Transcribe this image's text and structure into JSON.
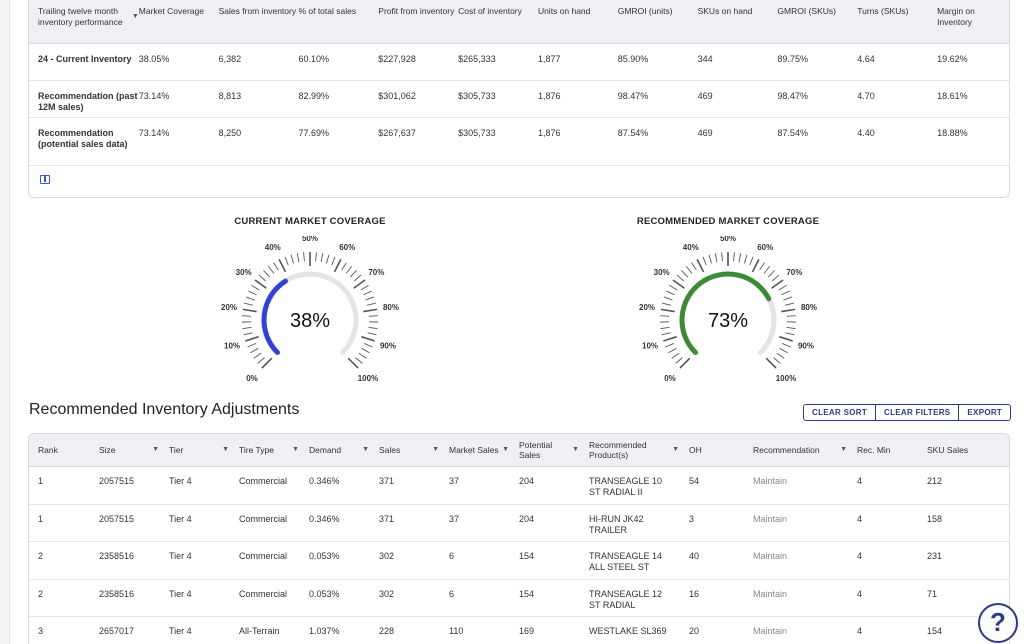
{
  "performance": {
    "headers": [
      "Trailing twelve month inventory performance",
      "Market Coverage",
      "Sales from inventory",
      "% of total sales",
      "Profit from inventory",
      "Cost of inventory",
      "Units on hand",
      "GMROI (units)",
      "SKUs on hand",
      "GMROI (SKUs)",
      "Turns (SKUs)",
      "Margin on Inventory"
    ],
    "rows": [
      [
        "24 - Current Inventory",
        "38.05%",
        "6,382",
        "60.10%",
        "$227,928",
        "$265,333",
        "1,877",
        "85.90%",
        "344",
        "89.75%",
        "4.64",
        "19.62%"
      ],
      [
        "Recommendation (past 12M sales)",
        "73.14%",
        "8,813",
        "82.99%",
        "$301,062",
        "$305,733",
        "1,876",
        "98.47%",
        "469",
        "98.47%",
        "4.70",
        "18.61%"
      ],
      [
        "Recommendation (potential sales data)",
        "73.14%",
        "8,250",
        "77.69%",
        "$267,637",
        "$305,733",
        "1,876",
        "87.54%",
        "469",
        "87.54%",
        "4.40",
        "18.88%"
      ]
    ]
  },
  "gauges": [
    {
      "title": "CURRENT MARKET COVERAGE",
      "value": 38.05,
      "display": "38%",
      "color": "#2f3fe0",
      "ticks": [
        "0%",
        "10%",
        "20%",
        "30%",
        "40%",
        "50%",
        "60%",
        "70%",
        "80%",
        "90%",
        "100%"
      ]
    },
    {
      "title": "RECOMMENDED MARKET COVERAGE",
      "value": 73.14,
      "display": "73%",
      "color": "#3d8b37",
      "ticks": [
        "0%",
        "10%",
        "20%",
        "30%",
        "40%",
        "50%",
        "60%",
        "70%",
        "80%",
        "90%",
        "100%"
      ]
    }
  ],
  "recommended": {
    "title": "Recommended Inventory Adjustments",
    "buttons": {
      "clear_sort": "CLEAR SORT",
      "clear_filters": "CLEAR FILTERS",
      "export": "EXPORT"
    },
    "headers": [
      "Rank",
      "Size",
      "Tier",
      "Tire Type",
      "Demand",
      "Sales",
      "Market Sales",
      "Potential Sales",
      "Recommended Product(s)",
      "OH",
      "Recommendation",
      "Rec. Min",
      "SKU Sales"
    ],
    "rows": [
      [
        "1",
        "2057515",
        "Tier 4",
        "Commercial",
        "0.346%",
        "371",
        "37",
        "204",
        "TRANSEAGLE 10 ST RADIAL II",
        "54",
        "Maintain",
        "4",
        "212"
      ],
      [
        "1",
        "2057515",
        "Tier 4",
        "Commercial",
        "0.346%",
        "371",
        "37",
        "204",
        "HI-RUN JK42 TRAILER",
        "3",
        "Maintain",
        "4",
        "158"
      ],
      [
        "2",
        "2358516",
        "Tier 4",
        "Commercial",
        "0.053%",
        "302",
        "6",
        "154",
        "TRANSEAGLE 14 ALL STEEL ST",
        "40",
        "Maintain",
        "4",
        "231"
      ],
      [
        "2",
        "2358516",
        "Tier 4",
        "Commercial",
        "0.053%",
        "302",
        "6",
        "154",
        "TRANSEAGLE 12 ST RADIAL",
        "16",
        "Maintain",
        "4",
        "71"
      ],
      [
        "3",
        "2657017",
        "Tier 4",
        "All-Terrain",
        "1.037%",
        "228",
        "110",
        "169",
        "WESTLAKE SL369",
        "20",
        "Maintain",
        "4",
        "154"
      ]
    ]
  },
  "help_label": "?"
}
